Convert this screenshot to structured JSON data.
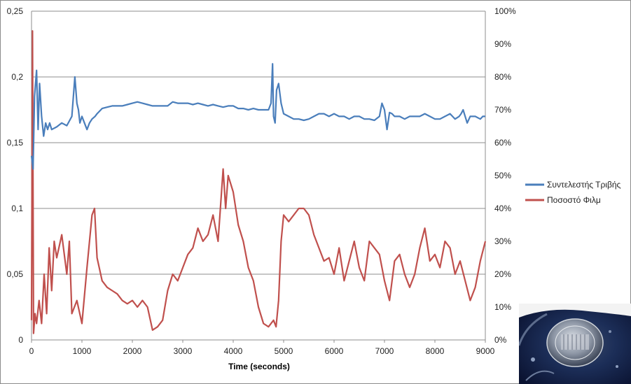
{
  "chart_data": {
    "type": "line",
    "xlabel": "Time (seconds)",
    "x_ticks": [
      "0",
      "1000",
      "2000",
      "3000",
      "4000",
      "5000",
      "6000",
      "7000",
      "8000",
      "9000"
    ],
    "xlim": [
      0,
      9000
    ],
    "y_left_ticks": [
      "0",
      "0,05",
      "0,1",
      "0,15",
      "0,2",
      "0,25"
    ],
    "ylim_left": [
      0,
      0.25
    ],
    "y_right_ticks": [
      "0%",
      "10%",
      "20%",
      "30%",
      "40%",
      "50%",
      "60%",
      "70%",
      "80%",
      "90%",
      "100%"
    ],
    "ylim_right": [
      0,
      1.0
    ],
    "grid": "horizontal",
    "legend_position": "right",
    "series": [
      {
        "name": "Συντελεστής Τριβής",
        "axis": "left",
        "color": "#4A7EBB",
        "x": [
          0,
          30,
          60,
          100,
          130,
          160,
          200,
          240,
          280,
          320,
          360,
          400,
          500,
          600,
          700,
          800,
          860,
          900,
          930,
          960,
          1000,
          1050,
          1100,
          1150,
          1200,
          1260,
          1300,
          1400,
          1500,
          1600,
          1700,
          1800,
          1900,
          2000,
          2100,
          2200,
          2300,
          2400,
          2500,
          2600,
          2700,
          2800,
          2900,
          3000,
          3100,
          3200,
          3300,
          3400,
          3500,
          3600,
          3700,
          3800,
          3900,
          4000,
          4100,
          4200,
          4300,
          4400,
          4500,
          4600,
          4700,
          4750,
          4780,
          4800,
          4830,
          4860,
          4900,
          4950,
          5000,
          5100,
          5200,
          5300,
          5400,
          5500,
          5600,
          5700,
          5800,
          5900,
          6000,
          6100,
          6200,
          6300,
          6400,
          6500,
          6600,
          6700,
          6800,
          6900,
          6950,
          7000,
          7050,
          7100,
          7150,
          7200,
          7300,
          7400,
          7500,
          7600,
          7700,
          7800,
          7900,
          8000,
          8100,
          8200,
          8300,
          8400,
          8480,
          8520,
          8560,
          8600,
          8640,
          8700,
          8800,
          8900,
          8950,
          9000
        ],
        "values": [
          0.14,
          0.13,
          0.185,
          0.205,
          0.16,
          0.195,
          0.17,
          0.155,
          0.165,
          0.16,
          0.165,
          0.16,
          0.162,
          0.165,
          0.163,
          0.17,
          0.2,
          0.18,
          0.175,
          0.165,
          0.17,
          0.165,
          0.16,
          0.165,
          0.168,
          0.17,
          0.172,
          0.176,
          0.177,
          0.178,
          0.178,
          0.178,
          0.179,
          0.18,
          0.181,
          0.18,
          0.179,
          0.178,
          0.178,
          0.178,
          0.178,
          0.181,
          0.18,
          0.18,
          0.18,
          0.179,
          0.18,
          0.179,
          0.178,
          0.179,
          0.178,
          0.177,
          0.178,
          0.178,
          0.176,
          0.176,
          0.175,
          0.176,
          0.175,
          0.175,
          0.175,
          0.18,
          0.21,
          0.17,
          0.165,
          0.19,
          0.195,
          0.18,
          0.172,
          0.17,
          0.168,
          0.168,
          0.167,
          0.168,
          0.17,
          0.172,
          0.172,
          0.17,
          0.172,
          0.17,
          0.17,
          0.168,
          0.17,
          0.17,
          0.168,
          0.168,
          0.167,
          0.17,
          0.18,
          0.175,
          0.16,
          0.173,
          0.172,
          0.17,
          0.17,
          0.168,
          0.17,
          0.17,
          0.17,
          0.172,
          0.17,
          0.168,
          0.168,
          0.17,
          0.172,
          0.168,
          0.17,
          0.172,
          0.175,
          0.17,
          0.165,
          0.17,
          0.17,
          0.168,
          0.17,
          0.17
        ]
      },
      {
        "name": "Ποσοστό Φιλμ",
        "axis": "right",
        "color": "#C0504D",
        "x": [
          0,
          20,
          40,
          70,
          100,
          150,
          200,
          250,
          300,
          350,
          400,
          450,
          500,
          600,
          700,
          750,
          800,
          900,
          1000,
          1100,
          1200,
          1250,
          1300,
          1400,
          1500,
          1600,
          1700,
          1800,
          1900,
          2000,
          2100,
          2200,
          2300,
          2400,
          2500,
          2600,
          2700,
          2800,
          2900,
          3000,
          3100,
          3200,
          3300,
          3400,
          3500,
          3600,
          3700,
          3800,
          3850,
          3900,
          4000,
          4100,
          4200,
          4300,
          4400,
          4500,
          4600,
          4700,
          4800,
          4850,
          4900,
          4950,
          5000,
          5100,
          5200,
          5300,
          5400,
          5500,
          5600,
          5700,
          5800,
          5900,
          6000,
          6100,
          6200,
          6300,
          6400,
          6500,
          6600,
          6700,
          6800,
          6900,
          7000,
          7100,
          7200,
          7300,
          7400,
          7500,
          7600,
          7700,
          7800,
          7900,
          8000,
          8100,
          8200,
          8300,
          8400,
          8500,
          8600,
          8700,
          8800,
          8900,
          9000
        ],
        "values": [
          0.06,
          0.94,
          0.02,
          0.08,
          0.05,
          0.12,
          0.05,
          0.2,
          0.08,
          0.28,
          0.15,
          0.3,
          0.25,
          0.32,
          0.2,
          0.3,
          0.08,
          0.12,
          0.05,
          0.22,
          0.38,
          0.4,
          0.25,
          0.18,
          0.16,
          0.15,
          0.14,
          0.12,
          0.11,
          0.12,
          0.1,
          0.12,
          0.1,
          0.03,
          0.04,
          0.06,
          0.15,
          0.2,
          0.18,
          0.22,
          0.26,
          0.28,
          0.34,
          0.3,
          0.32,
          0.38,
          0.3,
          0.52,
          0.4,
          0.5,
          0.45,
          0.35,
          0.3,
          0.22,
          0.18,
          0.1,
          0.05,
          0.04,
          0.06,
          0.04,
          0.12,
          0.3,
          0.38,
          0.36,
          0.38,
          0.4,
          0.4,
          0.38,
          0.32,
          0.28,
          0.24,
          0.25,
          0.2,
          0.28,
          0.18,
          0.24,
          0.3,
          0.22,
          0.18,
          0.3,
          0.28,
          0.26,
          0.18,
          0.12,
          0.24,
          0.26,
          0.2,
          0.16,
          0.2,
          0.28,
          0.34,
          0.24,
          0.26,
          0.22,
          0.3,
          0.28,
          0.2,
          0.24,
          0.18,
          0.12,
          0.16,
          0.24,
          0.3
        ]
      }
    ]
  }
}
